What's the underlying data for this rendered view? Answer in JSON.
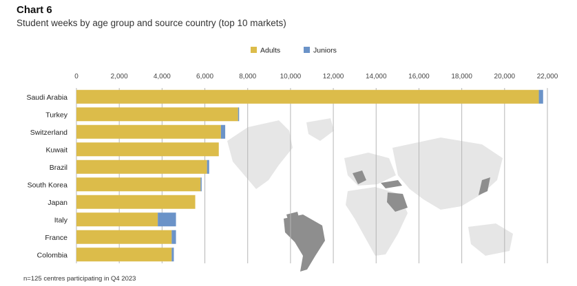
{
  "header": {
    "title": "Chart 6",
    "subtitle": "Student weeks by age group and source country (top 10 markets)"
  },
  "footnote": "n=125 centres participating in Q4 2023",
  "colors": {
    "adults": "#dcbc4a",
    "juniors": "#6b93c8",
    "grid": "#b5b5b5",
    "map_land": "#e6e6e6",
    "map_highlight": "#8e8e8e"
  },
  "chart_data": {
    "type": "bar",
    "orientation": "horizontal",
    "stacked": true,
    "categories": [
      "Saudi Arabia",
      "Turkey",
      "Switzerland",
      "Kuwait",
      "Brazil",
      "South Korea",
      "Japan",
      "Italy",
      "France",
      "Colombia"
    ],
    "series": [
      {
        "name": "Adults",
        "values": [
          21600,
          7550,
          6750,
          6650,
          6100,
          5800,
          5550,
          3800,
          4450,
          4450
        ]
      },
      {
        "name": "Juniors",
        "values": [
          200,
          50,
          200,
          0,
          100,
          50,
          0,
          850,
          200,
          100
        ]
      }
    ],
    "xlim": [
      0,
      22000
    ],
    "xticks": [
      0,
      2000,
      4000,
      6000,
      8000,
      10000,
      12000,
      14000,
      16000,
      18000,
      20000,
      22000
    ],
    "xtick_labels": [
      "0",
      "2,000",
      "4,000",
      "6,000",
      "8,000",
      "10,000",
      "12,000",
      "14,000",
      "16,000",
      "18,000",
      "20,000",
      "22,000"
    ],
    "xaxis_position": "top",
    "grid": "vertical",
    "legend": "top-center",
    "background": "world map highlighting source countries"
  }
}
